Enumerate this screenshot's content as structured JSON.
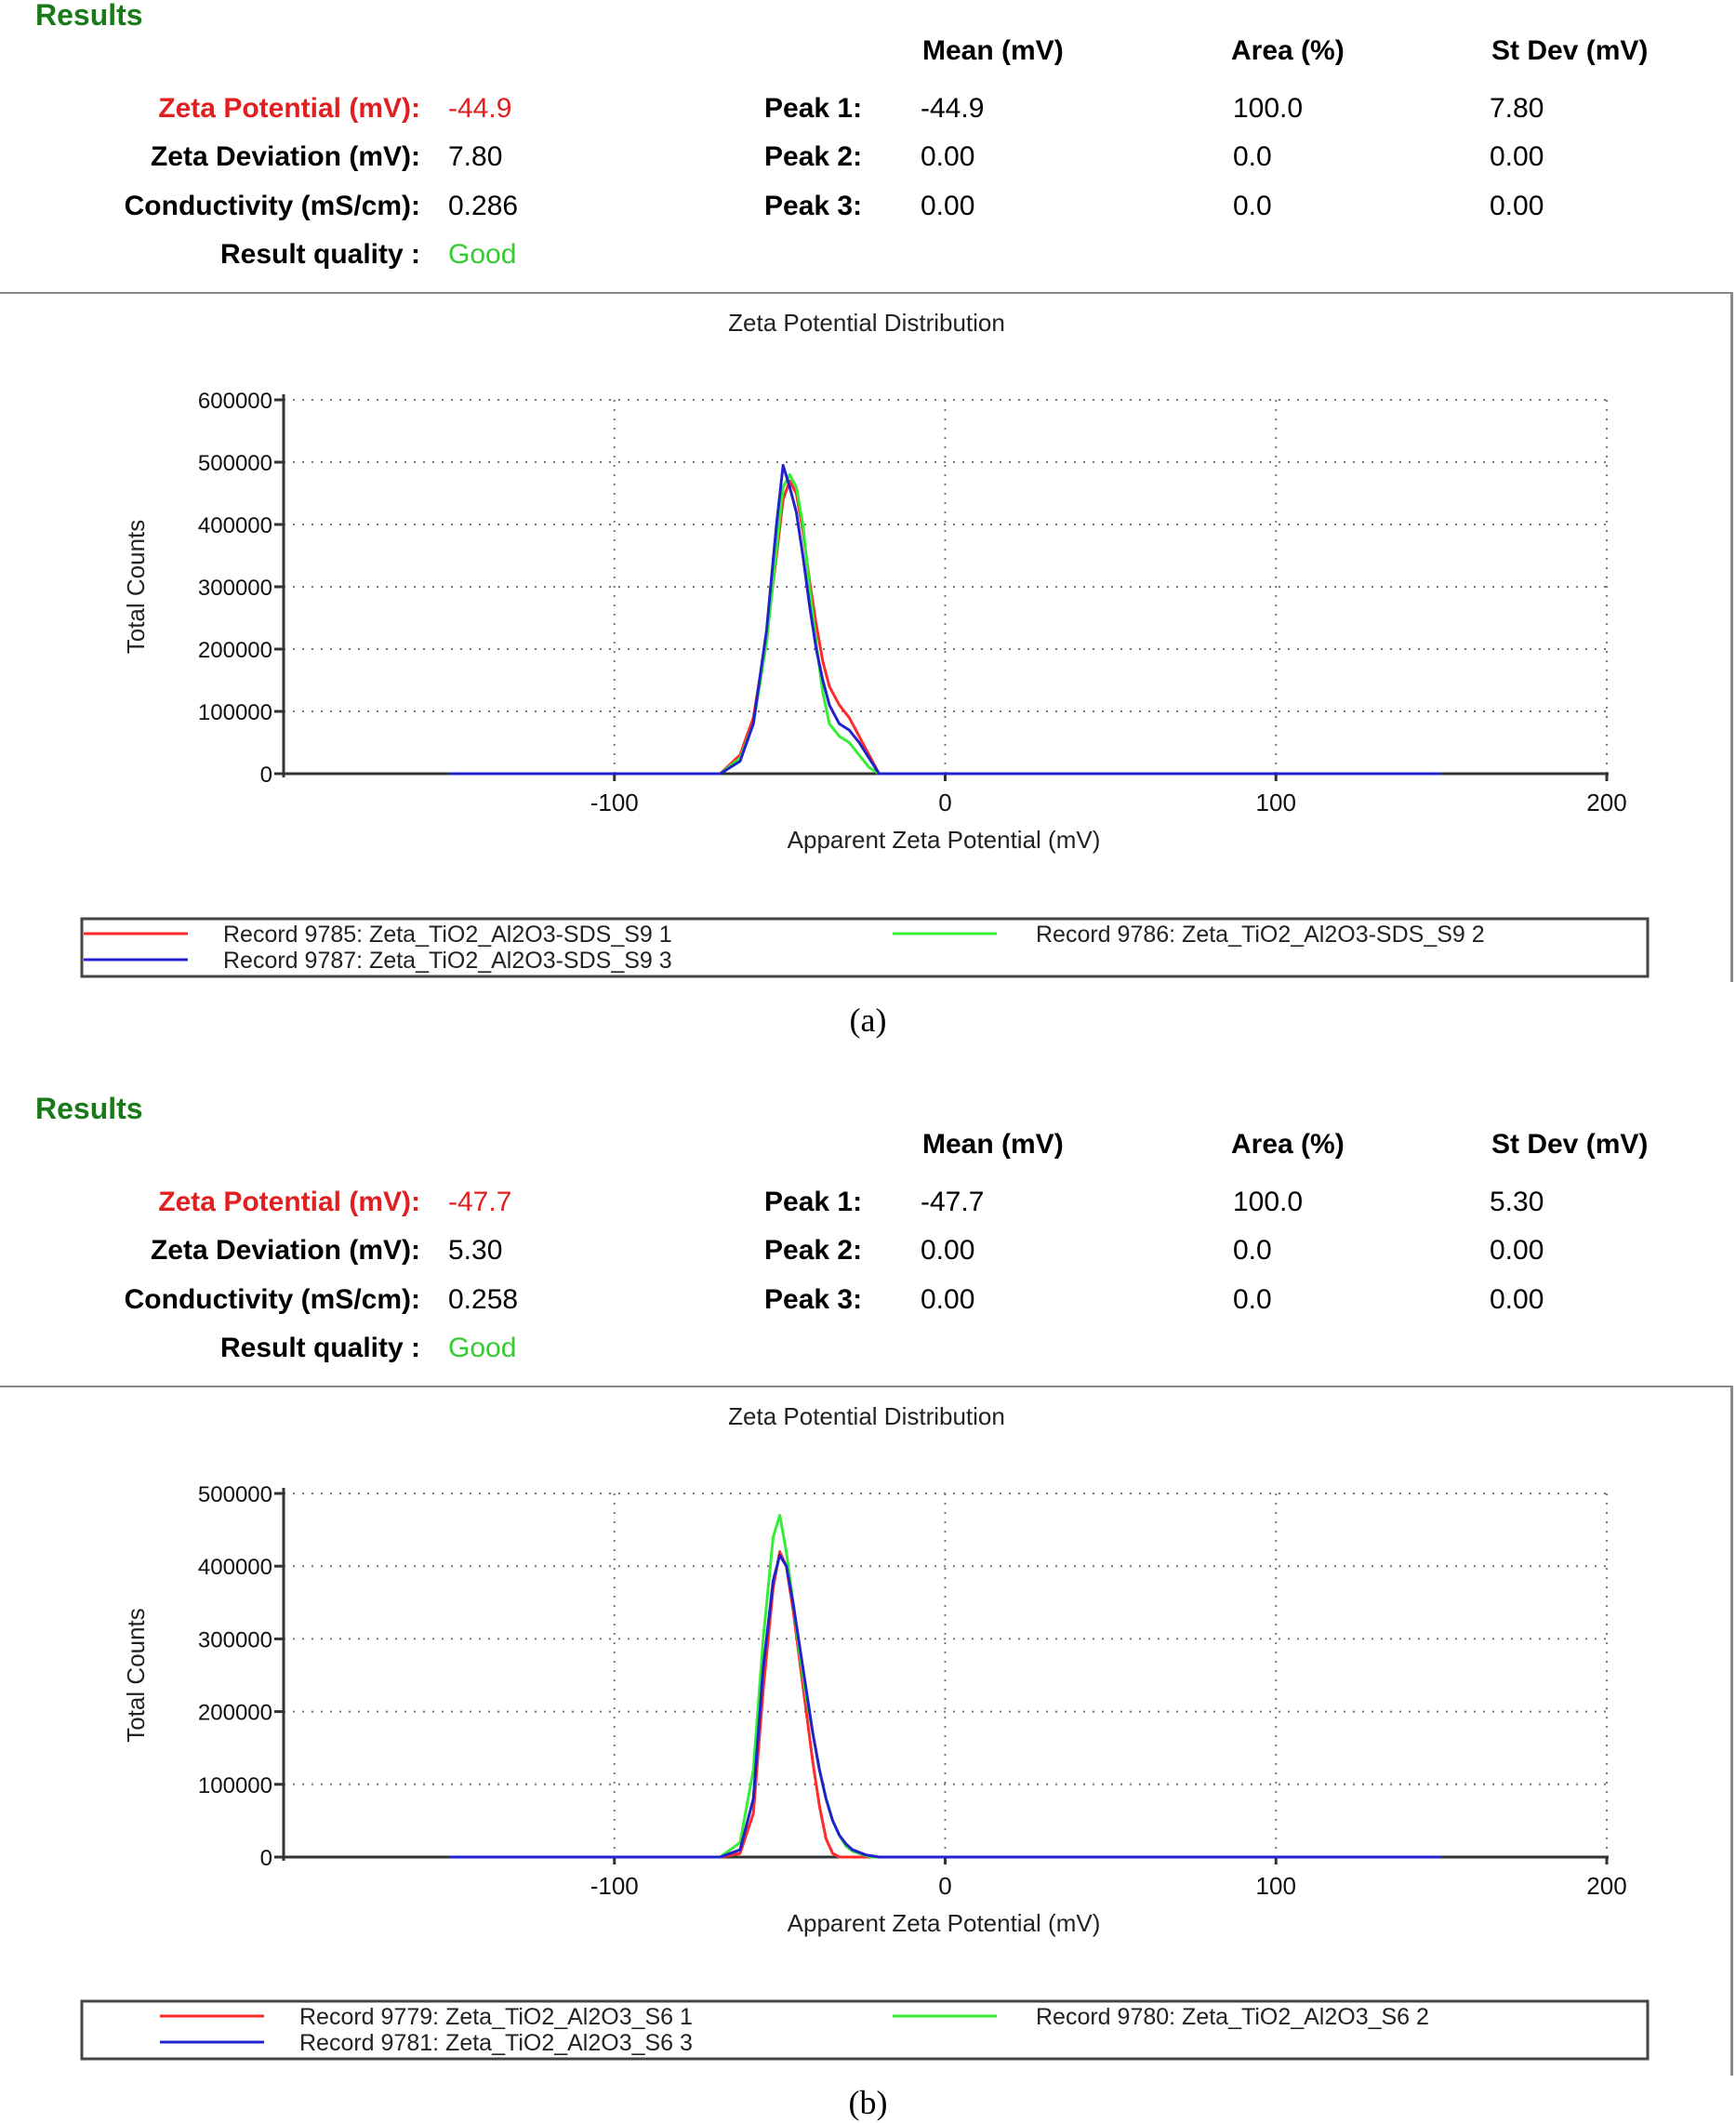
{
  "panels": [
    {
      "results_title": "Results",
      "headers": {
        "mean": "Mean (mV)",
        "area": "Area (%)",
        "stdev": "St Dev (mV)"
      },
      "rows": [
        {
          "label": "Zeta Potential (mV):",
          "value": "-44.9"
        },
        {
          "label": "Zeta Deviation (mV):",
          "value": "7.80"
        },
        {
          "label": "Conductivity (mS/cm):",
          "value": "0.286"
        },
        {
          "label": "Result quality :",
          "value": "Good"
        }
      ],
      "peaks": [
        {
          "label": "Peak 1:",
          "mean": "-44.9",
          "area": "100.0",
          "stdev": "7.80"
        },
        {
          "label": "Peak 2:",
          "mean": "0.00",
          "area": "0.0",
          "stdev": "0.00"
        },
        {
          "label": "Peak 3:",
          "mean": "0.00",
          "area": "0.0",
          "stdev": "0.00"
        }
      ],
      "caption": "(a)"
    },
    {
      "results_title": "Results",
      "headers": {
        "mean": "Mean (mV)",
        "area": "Area (%)",
        "stdev": "St Dev (mV)"
      },
      "rows": [
        {
          "label": "Zeta Potential (mV):",
          "value": "-47.7"
        },
        {
          "label": "Zeta Deviation (mV):",
          "value": "5.30"
        },
        {
          "label": "Conductivity (mS/cm):",
          "value": "0.258"
        },
        {
          "label": "Result quality :",
          "value": "Good"
        }
      ],
      "peaks": [
        {
          "label": "Peak 1:",
          "mean": "-47.7",
          "area": "100.0",
          "stdev": "5.30"
        },
        {
          "label": "Peak 2:",
          "mean": "0.00",
          "area": "0.0",
          "stdev": "0.00"
        },
        {
          "label": "Peak 3:",
          "mean": "0.00",
          "area": "0.0",
          "stdev": "0.00"
        }
      ],
      "caption": "(b)"
    }
  ],
  "colors": {
    "red": "#ff2a2a",
    "green": "#33ee33",
    "blue": "#2222cc"
  },
  "chart_data": [
    {
      "type": "line",
      "title": "Zeta Potential Distribution",
      "xlabel": "Apparent Zeta Potential (mV)",
      "ylabel": "Total Counts",
      "xlim": [
        -200,
        200
      ],
      "ylim": [
        0,
        600000
      ],
      "xticks": [
        -100,
        0,
        100,
        200
      ],
      "xtick_labels": [
        "-100",
        "0",
        "100",
        "200"
      ],
      "yticks": [
        0,
        100000,
        200000,
        300000,
        400000,
        500000,
        600000
      ],
      "ytick_labels": [
        "0",
        "100000",
        "200000",
        "300000",
        "400000",
        "500000",
        "600000"
      ],
      "grid": true,
      "series": [
        {
          "name": "Record 9785: Zeta_TiO2_Al2O3-SDS_S9 1",
          "color": "#ff2a2a",
          "x": [
            -150,
            -68,
            -62,
            -58,
            -54,
            -51,
            -49,
            -47,
            -45,
            -43,
            -41,
            -39,
            -37,
            -35,
            -32,
            -29,
            -26,
            -23,
            -20,
            150
          ],
          "y": [
            0,
            0,
            30000,
            90000,
            220000,
            350000,
            440000,
            470000,
            450000,
            390000,
            310000,
            240000,
            180000,
            140000,
            110000,
            90000,
            60000,
            30000,
            0,
            0
          ]
        },
        {
          "name": "Record 9786: Zeta_TiO2_Al2O3-SDS_S9 2",
          "color": "#33ee33",
          "x": [
            -150,
            -68,
            -62,
            -58,
            -54,
            -51,
            -49,
            -47,
            -45,
            -43,
            -41,
            -39,
            -37,
            -35,
            -32,
            -29,
            -26,
            -23,
            -20,
            150
          ],
          "y": [
            0,
            0,
            25000,
            80000,
            210000,
            360000,
            460000,
            480000,
            460000,
            400000,
            300000,
            210000,
            130000,
            80000,
            60000,
            50000,
            30000,
            10000,
            0,
            0
          ]
        },
        {
          "name": "Record 9787: Zeta_TiO2_Al2O3-SDS_S9 3",
          "color": "#2222cc",
          "x": [
            -150,
            -68,
            -62,
            -58,
            -54,
            -51,
            -49,
            -47,
            -45,
            -43,
            -41,
            -39,
            -37,
            -35,
            -32,
            -29,
            -26,
            -23,
            -20,
            150
          ],
          "y": [
            0,
            0,
            20000,
            80000,
            230000,
            400000,
            495000,
            460000,
            420000,
            350000,
            270000,
            200000,
            150000,
            110000,
            80000,
            70000,
            50000,
            25000,
            0,
            0
          ]
        }
      ],
      "legend": {
        "items": [
          "Record 9785: Zeta_TiO2_Al2O3-SDS_S9 1",
          "Record 9786: Zeta_TiO2_Al2O3-SDS_S9 2",
          "Record 9787: Zeta_TiO2_Al2O3-SDS_S9 3"
        ],
        "position": "bottom"
      }
    },
    {
      "type": "line",
      "title": "Zeta Potential Distribution",
      "xlabel": "Apparent Zeta Potential (mV)",
      "ylabel": "Total Counts",
      "xlim": [
        -200,
        200
      ],
      "ylim": [
        0,
        500000
      ],
      "xticks": [
        -100,
        0,
        100,
        200
      ],
      "xtick_labels": [
        "-100",
        "0",
        "100",
        "200"
      ],
      "yticks": [
        0,
        100000,
        200000,
        300000,
        400000,
        500000
      ],
      "ytick_labels": [
        "0",
        "100000",
        "200000",
        "300000",
        "400000",
        "500000"
      ],
      "grid": true,
      "series": [
        {
          "name": "Record 9779: Zeta_TiO2_Al2O3_S6 1",
          "color": "#ff2a2a",
          "x": [
            -150,
            -68,
            -62,
            -58,
            -55,
            -52,
            -50,
            -48,
            -46,
            -44,
            -42,
            -40,
            -38,
            -36,
            -34,
            -32,
            -30,
            -28,
            150
          ],
          "y": [
            0,
            0,
            5000,
            60000,
            230000,
            370000,
            420000,
            400000,
            340000,
            270000,
            200000,
            130000,
            70000,
            25000,
            5000,
            0,
            0,
            0,
            0
          ]
        },
        {
          "name": "Record 9780: Zeta_TiO2_Al2O3_S6 2",
          "color": "#33ee33",
          "x": [
            -150,
            -68,
            -62,
            -58,
            -55,
            -52,
            -50,
            -48,
            -46,
            -44,
            -42,
            -40,
            -38,
            -36,
            -34,
            -32,
            -30,
            -28,
            -24,
            -22,
            150
          ],
          "y": [
            0,
            0,
            20000,
            120000,
            300000,
            440000,
            470000,
            420000,
            350000,
            280000,
            220000,
            170000,
            120000,
            80000,
            50000,
            30000,
            15000,
            8000,
            2000,
            0,
            0
          ]
        },
        {
          "name": "Record 9781: Zeta_TiO2_Al2O3_S6 3",
          "color": "#2222cc",
          "x": [
            -150,
            -68,
            -62,
            -58,
            -55,
            -52,
            -50,
            -48,
            -46,
            -44,
            -42,
            -40,
            -38,
            -36,
            -34,
            -32,
            -30,
            -28,
            -24,
            -20,
            150
          ],
          "y": [
            0,
            0,
            10000,
            80000,
            260000,
            380000,
            415000,
            400000,
            350000,
            290000,
            230000,
            170000,
            120000,
            80000,
            50000,
            30000,
            18000,
            10000,
            3000,
            0,
            0
          ]
        }
      ],
      "legend": {
        "items": [
          "Record 9779: Zeta_TiO2_Al2O3_S6 1",
          "Record 9780: Zeta_TiO2_Al2O3_S6 2",
          "Record 9781: Zeta_TiO2_Al2O3_S6 3"
        ],
        "position": "bottom"
      }
    }
  ]
}
